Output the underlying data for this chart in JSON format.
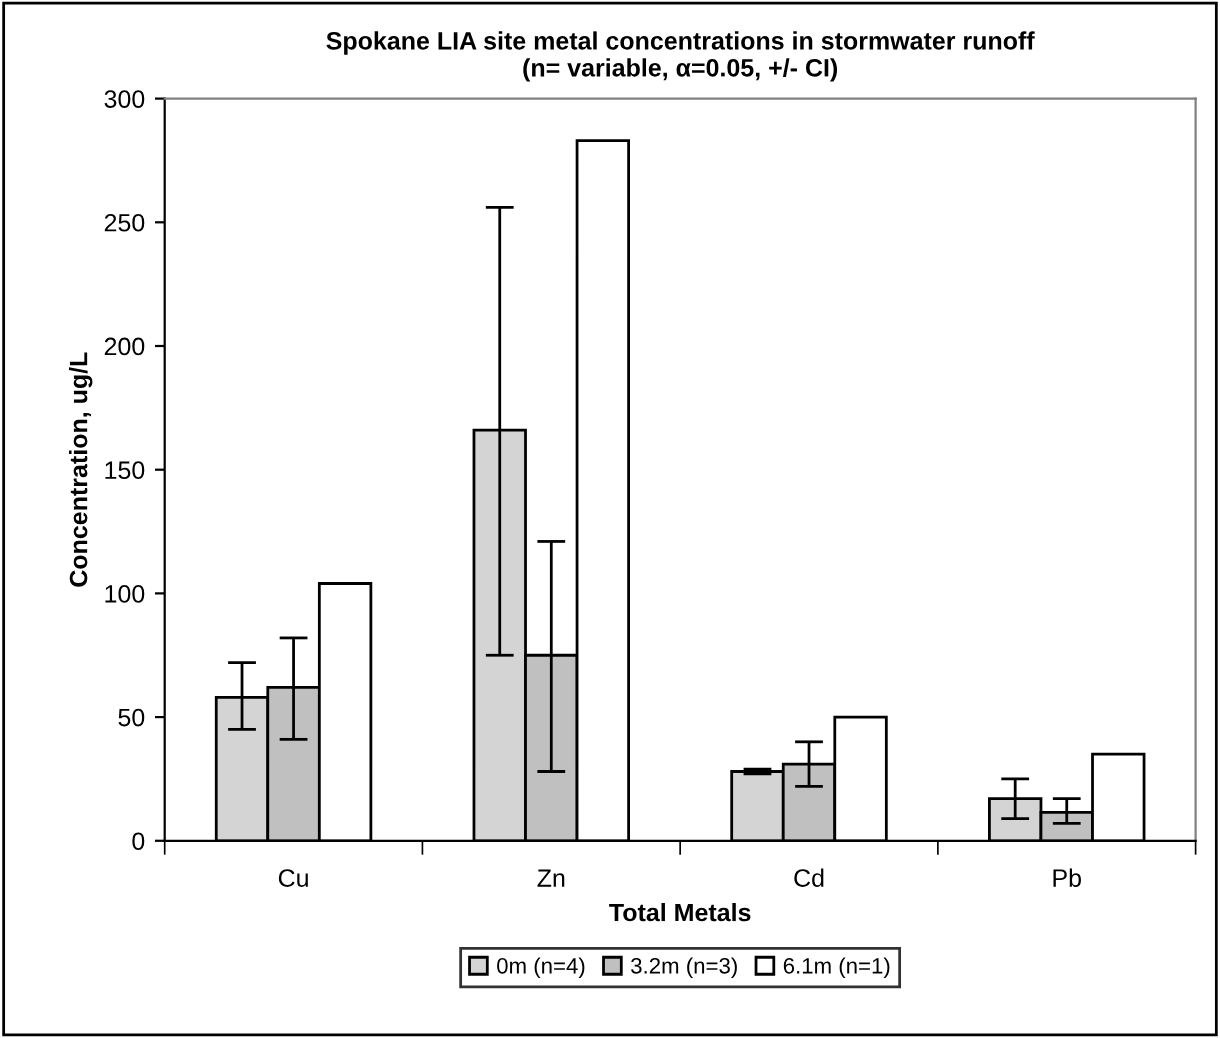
{
  "chart_data": {
    "type": "bar",
    "title": "Spokane LIA site metal concentrations in stormwater runoff\n(n= variable, α=0.05, +/- CI)",
    "xlabel": "Total Metals",
    "ylabel": "Concentration, ug/L",
    "categories": [
      "Cu",
      "Zn",
      "Cd",
      "Pb"
    ],
    "series": [
      {
        "name": "0m (n=4)",
        "color": "#d4d4d4",
        "values": [
          58,
          166,
          28,
          17
        ],
        "errors": [
          [
            45,
            72
          ],
          [
            75,
            256
          ],
          [
            27,
            29
          ],
          [
            9,
            25
          ]
        ]
      },
      {
        "name": "3.2m (n=3)",
        "color": "#c0c0c0",
        "values": [
          62,
          75,
          31,
          11.5
        ],
        "errors": [
          [
            41,
            82
          ],
          [
            28,
            121
          ],
          [
            22,
            40
          ],
          [
            7,
            17
          ]
        ]
      },
      {
        "name": "6.1m (n=1)",
        "color": "#ffffff",
        "values": [
          104,
          283,
          50,
          35
        ]
      }
    ],
    "ylim": [
      0,
      300
    ],
    "yticks": [
      0,
      50,
      100,
      150,
      200,
      250,
      300
    ],
    "grid": false,
    "legend": "bottom"
  }
}
